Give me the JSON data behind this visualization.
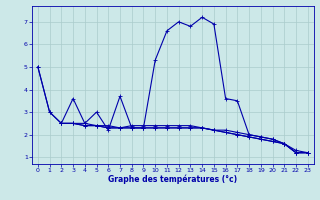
{
  "xlabel": "Graphe des températures (°c)",
  "background_color": "#cce8e8",
  "grid_color": "#aacccc",
  "line_color": "#0000aa",
  "xlim": [
    -0.5,
    23.5
  ],
  "ylim": [
    0.7,
    7.7
  ],
  "xticks": [
    0,
    1,
    2,
    3,
    4,
    5,
    6,
    7,
    8,
    9,
    10,
    11,
    12,
    13,
    14,
    15,
    16,
    17,
    18,
    19,
    20,
    21,
    22,
    23
  ],
  "yticks": [
    1,
    2,
    3,
    4,
    5,
    6,
    7
  ],
  "figsize": [
    3.2,
    2.0
  ],
  "dpi": 100,
  "curves": [
    {
      "x": [
        0,
        1,
        2,
        3,
        4,
        5,
        6,
        7,
        8,
        9,
        10,
        11,
        12,
        13,
        14,
        15,
        16,
        17,
        18,
        19,
        20,
        21,
        22,
        23
      ],
      "y": [
        5.0,
        3.0,
        2.5,
        3.6,
        2.5,
        3.0,
        2.2,
        3.7,
        2.3,
        2.3,
        5.3,
        6.6,
        7.0,
        6.8,
        7.2,
        6.9,
        3.6,
        3.5,
        2.0,
        1.9,
        1.8,
        1.6,
        1.2,
        1.2
      ]
    },
    {
      "x": [
        0,
        1,
        2,
        3,
        4,
        5,
        6,
        7,
        8,
        9,
        10,
        11,
        12,
        13,
        14,
        15,
        16,
        17,
        18,
        19,
        20,
        21,
        22,
        23
      ],
      "y": [
        5.0,
        3.0,
        2.5,
        2.5,
        2.4,
        2.4,
        2.3,
        2.3,
        2.3,
        2.3,
        2.3,
        2.3,
        2.3,
        2.3,
        2.3,
        2.2,
        2.1,
        2.0,
        1.9,
        1.8,
        1.7,
        1.6,
        1.2,
        1.2
      ]
    },
    {
      "x": [
        2,
        3,
        4,
        5,
        6,
        7,
        8,
        9,
        10,
        11,
        12,
        13,
        14,
        15,
        16,
        17,
        18,
        19,
        20,
        21,
        22,
        23
      ],
      "y": [
        2.5,
        2.5,
        2.4,
        2.4,
        2.3,
        2.3,
        2.3,
        2.3,
        2.3,
        2.3,
        2.3,
        2.3,
        2.3,
        2.2,
        2.1,
        2.0,
        1.9,
        1.8,
        1.7,
        1.6,
        1.2,
        1.2
      ]
    },
    {
      "x": [
        2,
        3,
        4,
        5,
        6,
        7,
        8,
        9,
        10,
        11,
        12,
        13,
        14,
        15,
        16,
        17,
        18,
        19,
        20,
        21,
        22,
        23
      ],
      "y": [
        2.5,
        2.5,
        2.5,
        2.4,
        2.4,
        2.3,
        2.4,
        2.4,
        2.4,
        2.4,
        2.4,
        2.4,
        2.3,
        2.2,
        2.2,
        2.1,
        2.0,
        1.9,
        1.8,
        1.6,
        1.3,
        1.2
      ]
    }
  ]
}
